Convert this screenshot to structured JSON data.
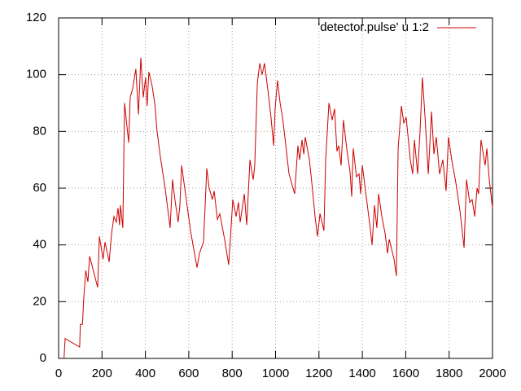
{
  "chart_data": {
    "type": "line",
    "x": [
      25,
      30,
      97,
      100,
      110,
      115,
      125,
      135,
      143,
      180,
      188,
      205,
      214,
      233,
      244,
      255,
      266,
      274,
      281,
      285,
      296,
      304,
      323,
      330,
      341,
      356,
      368,
      379,
      390,
      401,
      408,
      416,
      431,
      443,
      454,
      469,
      491,
      514,
      525,
      536,
      551,
      559,
      567,
      585,
      608,
      638,
      649,
      668,
      683,
      694,
      709,
      717,
      732,
      743,
      765,
      784,
      803,
      818,
      829,
      837,
      856,
      867,
      882,
      897,
      904,
      916,
      927,
      938,
      949,
      964,
      979,
      991,
      998,
      1009,
      1021,
      1032,
      1043,
      1062,
      1088,
      1103,
      1111,
      1122,
      1130,
      1137,
      1156,
      1167,
      1182,
      1193,
      1205,
      1223,
      1231,
      1246,
      1261,
      1272,
      1283,
      1291,
      1302,
      1313,
      1328,
      1343,
      1351,
      1358,
      1373,
      1385,
      1392,
      1400,
      1418,
      1433,
      1445,
      1456,
      1467,
      1475,
      1490,
      1505,
      1516,
      1524,
      1546,
      1557,
      1565,
      1580,
      1591,
      1602,
      1621,
      1632,
      1640,
      1655,
      1666,
      1677,
      1689,
      1704,
      1719,
      1730,
      1741,
      1756,
      1771,
      1786,
      1797,
      1812,
      1831,
      1850,
      1869,
      1880,
      1895,
      1906,
      1918,
      1929,
      1936,
      1947,
      1966,
      1974,
      1985,
      2000
    ],
    "series": [
      {
        "name": "'detector.pulse' u 1:2",
        "color": "#cc0000",
        "values": [
          0,
          7,
          4,
          12,
          12,
          20,
          31,
          27,
          36,
          25,
          43,
          35,
          41,
          34,
          44,
          50,
          48,
          53,
          47,
          54,
          46,
          90,
          76,
          92,
          95,
          102,
          86,
          106,
          92,
          99,
          89,
          101,
          96,
          90,
          80,
          71,
          60,
          46,
          63,
          56,
          48,
          54,
          68,
          58,
          45,
          32,
          37,
          41,
          67,
          60,
          56,
          59,
          49,
          51,
          42,
          33,
          56,
          50,
          55,
          48,
          58,
          47,
          70,
          63,
          68,
          97,
          104,
          100,
          104,
          95,
          85,
          75,
          88,
          98,
          90,
          85,
          78,
          65,
          58,
          75,
          70,
          77,
          72,
          78,
          70,
          62,
          50,
          43,
          51,
          45,
          70,
          90,
          84,
          88,
          73,
          75,
          68,
          84,
          74,
          66,
          57,
          74,
          64,
          65,
          58,
          68,
          57,
          48,
          40,
          54,
          46,
          58,
          50,
          44,
          37,
          42,
          35,
          29,
          74,
          89,
          83,
          85,
          70,
          65,
          77,
          65,
          80,
          99,
          85,
          65,
          87,
          72,
          78,
          65,
          70,
          59,
          78,
          70,
          62,
          52,
          39,
          63,
          55,
          56,
          50,
          60,
          58,
          77,
          68,
          74,
          63,
          53
        ]
      }
    ],
    "xlim": [
      0,
      2000
    ],
    "ylim": [
      0,
      120
    ],
    "xticks": [
      0,
      200,
      400,
      600,
      800,
      1000,
      1200,
      1400,
      1600,
      1800,
      2000
    ],
    "yticks": [
      0,
      20,
      40,
      60,
      80,
      100,
      120
    ],
    "grid": true,
    "legend": "top-right"
  }
}
